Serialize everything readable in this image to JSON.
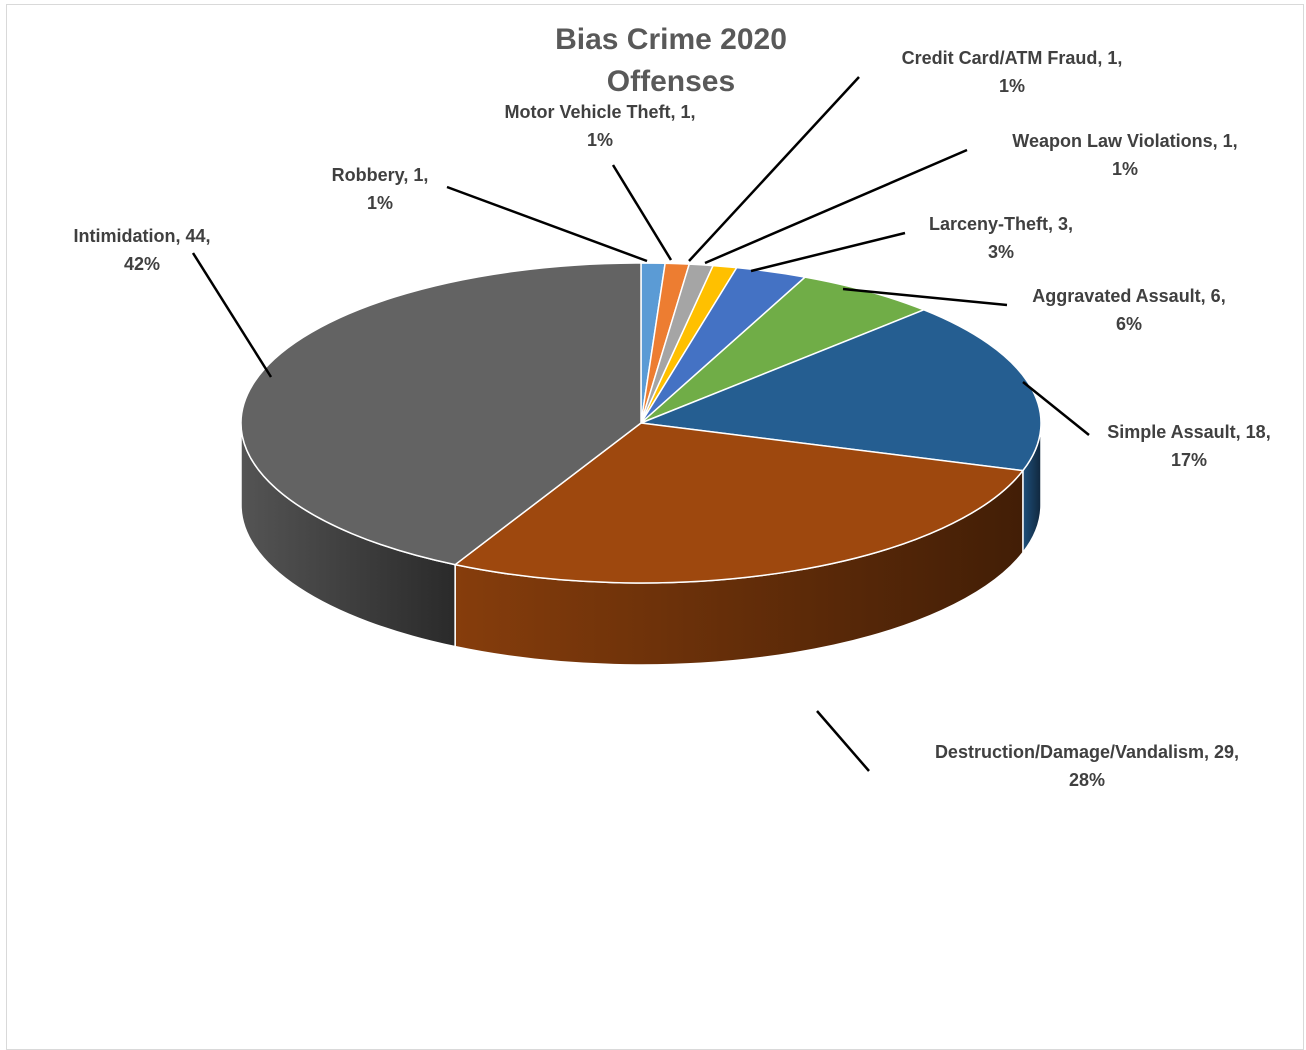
{
  "chart_data": {
    "type": "pie",
    "style": "3d",
    "title_lines": [
      "Bias Crime 2020",
      "Offenses"
    ],
    "legend": "none",
    "slices": [
      {
        "name": "Robbery",
        "value": 1,
        "percent": "1%",
        "color": "#5B9BD5",
        "label_lines": [
          "Robbery, 1,",
          "1%"
        ]
      },
      {
        "name": "Motor Vehicle Theft",
        "value": 1,
        "percent": "1%",
        "color": "#ED7D31",
        "label_lines": [
          "Motor Vehicle Theft, 1,",
          "1%"
        ]
      },
      {
        "name": "Credit Card/ATM Fraud",
        "value": 1,
        "percent": "1%",
        "color": "#A5A5A5",
        "label_lines": [
          "Credit Card/ATM Fraud, 1,",
          "1%"
        ]
      },
      {
        "name": "Weapon Law Violations",
        "value": 1,
        "percent": "1%",
        "color": "#FFC000",
        "label_lines": [
          "Weapon Law Violations, 1,",
          "1%"
        ]
      },
      {
        "name": "Larceny-Theft",
        "value": 3,
        "percent": "3%",
        "color": "#4472C4",
        "label_lines": [
          "Larceny-Theft, 3,",
          "3%"
        ]
      },
      {
        "name": "Aggravated Assault",
        "value": 6,
        "percent": "6%",
        "color": "#70AD47",
        "label_lines": [
          "Aggravated Assault, 6,",
          "6%"
        ]
      },
      {
        "name": "Simple Assault",
        "value": 18,
        "percent": "17%",
        "color": "#255E91",
        "label_lines": [
          "Simple Assault, 18,",
          "17%"
        ]
      },
      {
        "name": "Destruction/Damage/Vandalism",
        "value": 29,
        "percent": "28%",
        "color": "#9E480E",
        "label_lines": [
          "Destruction/Damage/Vandalism, 29,",
          "28%"
        ]
      },
      {
        "name": "Intimidation",
        "value": 44,
        "percent": "42%",
        "color": "#636363",
        "label_lines": [
          "Intimidation, 44,",
          "42%"
        ]
      }
    ]
  }
}
